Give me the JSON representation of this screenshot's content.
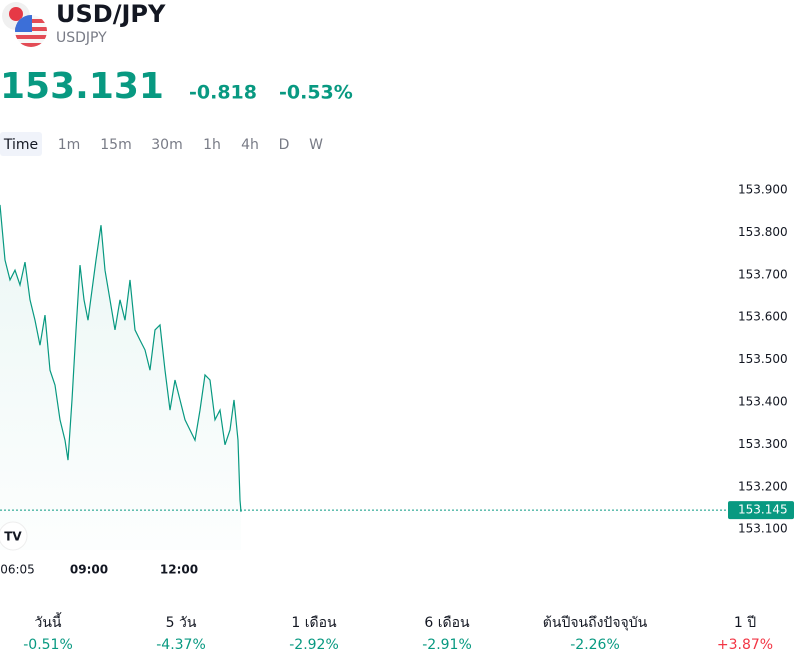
{
  "header": {
    "title": "USD/JPY",
    "symbol": "USDJPY",
    "price": "153.131",
    "change": "-0.818",
    "change_percent": "-0.53%"
  },
  "timeframes": [
    "Time",
    "1m",
    "15m",
    "30m",
    "1h",
    "4h",
    "D",
    "W"
  ],
  "chart_data": {
    "type": "line",
    "color": "#089981",
    "x": [
      362,
      372,
      382,
      392,
      402,
      412,
      422,
      432,
      442,
      452,
      462,
      472,
      482,
      492,
      498,
      506,
      514,
      522,
      530,
      538,
      546,
      554,
      564,
      572,
      582,
      592,
      602,
      612,
      622,
      632,
      642,
      652,
      662,
      672,
      682,
      692,
      702,
      712,
      722,
      732,
      742,
      752,
      762,
      772,
      782,
      792,
      802,
      812,
      822,
      830,
      838,
      842,
      844
    ],
    "values": [
      153.865,
      153.735,
      153.688,
      153.711,
      153.676,
      153.73,
      153.641,
      153.593,
      153.534,
      153.605,
      153.475,
      153.44,
      153.358,
      153.31,
      153.263,
      153.405,
      153.57,
      153.723,
      153.641,
      153.593,
      153.664,
      153.735,
      153.817,
      153.711,
      153.641,
      153.57,
      153.641,
      153.593,
      153.688,
      153.57,
      153.546,
      153.523,
      153.475,
      153.57,
      153.582,
      153.475,
      153.381,
      153.452,
      153.405,
      153.358,
      153.334,
      153.31,
      153.381,
      153.464,
      153.452,
      153.358,
      153.381,
      153.299,
      153.334,
      153.405,
      153.31,
      153.169,
      153.141
    ],
    "xlim": [
      362,
      1816
    ],
    "ylim": [
      153.051,
      153.959
    ],
    "xticks": [
      {
        "value": 365,
        "label": "06:05"
      },
      {
        "value": 540,
        "label": "09:00"
      },
      {
        "value": 720,
        "label": "12:00"
      }
    ],
    "yticks": [
      {
        "value": 153.9,
        "label": "153.900"
      },
      {
        "value": 153.8,
        "label": "153.800"
      },
      {
        "value": 153.7,
        "label": "153.700"
      },
      {
        "value": 153.6,
        "label": "153.600"
      },
      {
        "value": 153.5,
        "label": "153.500"
      },
      {
        "value": 153.4,
        "label": "153.400"
      },
      {
        "value": 153.3,
        "label": "153.300"
      },
      {
        "value": 153.2,
        "label": "153.200"
      },
      {
        "value": 153.1,
        "label": "153.100"
      }
    ],
    "last_price": 153.145
  },
  "performance": [
    {
      "label": "วันนี้",
      "value": "-0.51%"
    },
    {
      "label": "5 วัน",
      "value": "-4.37%"
    },
    {
      "label": "1 เดือน",
      "value": "-2.92%"
    },
    {
      "label": "6 เดือน",
      "value": "-2.91%"
    },
    {
      "label": "ต้นปีจนถึงปัจจุบัน",
      "value": "-2.26%"
    },
    {
      "label": "1 ปี",
      "value": "+3.87%"
    }
  ]
}
